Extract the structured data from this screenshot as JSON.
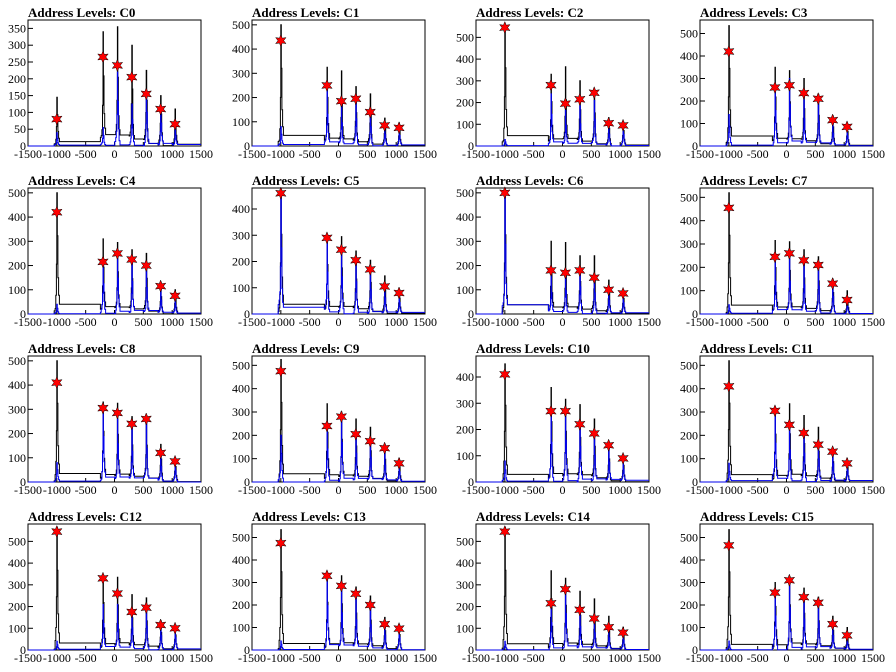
{
  "chart_data": [
    {
      "type": "bar",
      "title": "Address Levels: C0",
      "xlim": [
        -1500,
        1500
      ],
      "ylim": [
        0,
        375
      ],
      "yticks": [
        0,
        50,
        100,
        150,
        200,
        250,
        300,
        350
      ],
      "xticks": [
        -1500,
        -1000,
        -500,
        0,
        500,
        1000,
        1500
      ],
      "tick_label_text": [
        "-1500",
        "-1000",
        "-500",
        "0",
        "500",
        "1000",
        "1500"
      ],
      "peak_x": [
        -1000,
        -200,
        50,
        300,
        550,
        800,
        1050
      ],
      "black_series": [
        145,
        340,
        355,
        300,
        225,
        150,
        110
      ],
      "blue_series": [
        40,
        55,
        220,
        125,
        160,
        110,
        55
      ],
      "star_series": [
        80,
        265,
        240,
        205,
        155,
        110,
        65
      ]
    },
    {
      "type": "bar",
      "title": "Address Levels: C1",
      "xlim": [
        -1500,
        1500
      ],
      "ylim": [
        0,
        520
      ],
      "yticks": [
        0,
        100,
        200,
        300,
        400,
        500
      ],
      "xticks": [
        -1500,
        -1000,
        -500,
        0,
        500,
        1000,
        1500
      ],
      "tick_label_text": [
        "-1500",
        "-1000",
        "-500",
        "0",
        "500",
        "1000",
        "1500"
      ],
      "peak_x": [
        -1000,
        -200,
        50,
        300,
        550,
        800,
        1050
      ],
      "black_series": [
        500,
        325,
        310,
        245,
        215,
        115,
        95
      ],
      "blue_series": [
        80,
        230,
        170,
        190,
        130,
        75,
        70
      ],
      "star_series": [
        435,
        250,
        185,
        195,
        140,
        85,
        75
      ]
    },
    {
      "type": "bar",
      "title": "Address Levels: C2",
      "xlim": [
        -1500,
        1500
      ],
      "ylim": [
        0,
        580
      ],
      "yticks": [
        0,
        100,
        200,
        300,
        400,
        500
      ],
      "xticks": [
        -1500,
        -1000,
        -500,
        0,
        500,
        1000,
        1500
      ],
      "tick_label_text": [
        "-1500",
        "-1000",
        "-500",
        "0",
        "500",
        "1000",
        "1500"
      ],
      "peak_x": [
        -1000,
        -200,
        50,
        300,
        550,
        800,
        1050
      ],
      "black_series": [
        560,
        330,
        365,
        300,
        255,
        130,
        110
      ],
      "blue_series": [
        30,
        240,
        165,
        185,
        210,
        90,
        85
      ],
      "star_series": [
        545,
        280,
        195,
        215,
        245,
        105,
        95
      ]
    },
    {
      "type": "bar",
      "title": "Address Levels: C3",
      "xlim": [
        -1500,
        1500
      ],
      "ylim": [
        0,
        560
      ],
      "yticks": [
        0,
        100,
        200,
        300,
        400,
        500
      ],
      "xticks": [
        -1500,
        -1000,
        -500,
        0,
        500,
        1000,
        1500
      ],
      "tick_label_text": [
        "-1500",
        "-1000",
        "-500",
        "0",
        "500",
        "1000",
        "1500"
      ],
      "peak_x": [
        -1000,
        -200,
        50,
        300,
        550,
        800,
        1050
      ],
      "black_series": [
        535,
        350,
        335,
        300,
        230,
        135,
        100
      ],
      "blue_series": [
        140,
        250,
        300,
        205,
        195,
        100,
        75
      ],
      "star_series": [
        420,
        260,
        270,
        235,
        210,
        115,
        85
      ]
    },
    {
      "type": "bar",
      "title": "Address Levels: C4",
      "xlim": [
        -1500,
        1500
      ],
      "ylim": [
        0,
        520
      ],
      "yticks": [
        0,
        100,
        200,
        300,
        400,
        500
      ],
      "xticks": [
        -1500,
        -1000,
        -500,
        0,
        500,
        1000,
        1500
      ],
      "tick_label_text": [
        "-1500",
        "-1000",
        "-500",
        "0",
        "500",
        "1000",
        "1500"
      ],
      "peak_x": [
        -1000,
        -200,
        50,
        300,
        550,
        800,
        1050
      ],
      "black_series": [
        500,
        310,
        295,
        265,
        250,
        115,
        100
      ],
      "blue_series": [
        40,
        200,
        235,
        215,
        180,
        100,
        65
      ],
      "star_series": [
        420,
        215,
        250,
        225,
        200,
        115,
        75
      ]
    },
    {
      "type": "bar",
      "title": "Address Levels: C5",
      "xlim": [
        -1500,
        1500
      ],
      "ylim": [
        0,
        480
      ],
      "yticks": [
        0,
        100,
        200,
        300,
        400
      ],
      "xticks": [
        -1500,
        -1000,
        -500,
        0,
        500,
        1000,
        1500
      ],
      "tick_label_text": [
        "-1500",
        "-1000",
        "-500",
        "0",
        "500",
        "1000",
        "1500"
      ],
      "peak_x": [
        -1000,
        -200,
        50,
        300,
        550,
        800,
        1050
      ],
      "black_series": [
        470,
        300,
        295,
        240,
        205,
        145,
        95
      ],
      "blue_series": [
        450,
        270,
        230,
        195,
        150,
        100,
        75
      ],
      "star_series": [
        460,
        290,
        245,
        205,
        170,
        105,
        80
      ]
    },
    {
      "type": "bar",
      "title": "Address Levels: C6",
      "xlim": [
        -1500,
        1500
      ],
      "ylim": [
        0,
        520
      ],
      "yticks": [
        0,
        100,
        200,
        300,
        400,
        500
      ],
      "xticks": [
        -1500,
        -1000,
        -500,
        0,
        500,
        1000,
        1500
      ],
      "tick_label_text": [
        "-1500",
        "-1000",
        "-500",
        "0",
        "500",
        "1000",
        "1500"
      ],
      "peak_x": [
        -1000,
        -200,
        50,
        300,
        550,
        800,
        1050
      ],
      "black_series": [
        505,
        300,
        295,
        240,
        240,
        140,
        100
      ],
      "blue_series": [
        490,
        160,
        165,
        185,
        140,
        90,
        75
      ],
      "star_series": [
        500,
        180,
        170,
        180,
        150,
        100,
        85
      ]
    },
    {
      "type": "bar",
      "title": "Address Levels: C7",
      "xlim": [
        -1500,
        1500
      ],
      "ylim": [
        0,
        540
      ],
      "yticks": [
        0,
        100,
        200,
        300,
        400,
        500
      ],
      "xticks": [
        -1500,
        -1000,
        -500,
        0,
        500,
        1000,
        1500
      ],
      "tick_label_text": [
        "-1500",
        "-1000",
        "-500",
        "0",
        "500",
        "1000",
        "1500"
      ],
      "peak_x": [
        -1000,
        -200,
        50,
        300,
        550,
        800,
        1050
      ],
      "black_series": [
        520,
        315,
        310,
        275,
        245,
        150,
        100
      ],
      "blue_series": [
        40,
        235,
        250,
        220,
        200,
        120,
        50
      ],
      "star_series": [
        455,
        245,
        260,
        230,
        210,
        130,
        60
      ]
    },
    {
      "type": "bar",
      "title": "Address Levels: C8",
      "xlim": [
        -1500,
        1500
      ],
      "ylim": [
        0,
        520
      ],
      "yticks": [
        0,
        100,
        200,
        300,
        400,
        500
      ],
      "xticks": [
        -1500,
        -1000,
        -500,
        0,
        500,
        1000,
        1500
      ],
      "tick_label_text": [
        "-1500",
        "-1000",
        "-500",
        "0",
        "500",
        "1000",
        "1500"
      ],
      "peak_x": [
        -1000,
        -200,
        50,
        300,
        550,
        800,
        1050
      ],
      "black_series": [
        500,
        330,
        325,
        270,
        265,
        155,
        100
      ],
      "blue_series": [
        80,
        300,
        260,
        220,
        250,
        110,
        75
      ],
      "star_series": [
        410,
        305,
        285,
        240,
        260,
        120,
        85
      ]
    },
    {
      "type": "bar",
      "title": "Address Levels: C9",
      "xlim": [
        -1500,
        1500
      ],
      "ylim": [
        0,
        540
      ],
      "yticks": [
        0,
        100,
        200,
        300,
        400,
        500
      ],
      "xticks": [
        -1500,
        -1000,
        -500,
        0,
        500,
        1000,
        1500
      ],
      "tick_label_text": [
        "-1500",
        "-1000",
        "-500",
        "0",
        "500",
        "1000",
        "1500"
      ],
      "peak_x": [
        -1000,
        -200,
        50,
        300,
        550,
        800,
        1050
      ],
      "black_series": [
        525,
        335,
        300,
        270,
        235,
        160,
        100
      ],
      "blue_series": [
        200,
        225,
        270,
        200,
        180,
        130,
        75
      ],
      "star_series": [
        475,
        240,
        280,
        205,
        175,
        145,
        80
      ]
    },
    {
      "type": "bar",
      "title": "Address Levels: C10",
      "xlim": [
        -1500,
        1500
      ],
      "ylim": [
        0,
        480
      ],
      "yticks": [
        0,
        100,
        200,
        300,
        400
      ],
      "xticks": [
        -1500,
        -1000,
        -500,
        0,
        500,
        1000,
        1500
      ],
      "tick_label_text": [
        "-1500",
        "-1000",
        "-500",
        "0",
        "500",
        "1000",
        "1500"
      ],
      "peak_x": [
        -1000,
        -200,
        50,
        300,
        550,
        800,
        1050
      ],
      "black_series": [
        450,
        360,
        315,
        295,
        240,
        145,
        100
      ],
      "blue_series": [
        80,
        250,
        255,
        215,
        165,
        125,
        85
      ],
      "star_series": [
        410,
        270,
        270,
        220,
        185,
        140,
        90
      ]
    },
    {
      "type": "bar",
      "title": "Address Levels: C11",
      "xlim": [
        -1500,
        1500
      ],
      "ylim": [
        0,
        540
      ],
      "yticks": [
        0,
        100,
        200,
        300,
        400,
        500
      ],
      "xticks": [
        -1500,
        -1000,
        -500,
        0,
        500,
        1000,
        1500
      ],
      "tick_label_text": [
        "-1500",
        "-1000",
        "-500",
        "0",
        "500",
        "1000",
        "1500"
      ],
      "peak_x": [
        -1000,
        -200,
        50,
        300,
        550,
        800,
        1050
      ],
      "black_series": [
        520,
        320,
        335,
        285,
        235,
        145,
        100
      ],
      "blue_series": [
        80,
        295,
        230,
        200,
        160,
        125,
        80
      ],
      "star_series": [
        410,
        305,
        245,
        210,
        160,
        130,
        80
      ]
    },
    {
      "type": "bar",
      "title": "Address Levels: C12",
      "xlim": [
        -1500,
        1500
      ],
      "ylim": [
        0,
        580
      ],
      "yticks": [
        0,
        100,
        200,
        300,
        400,
        500
      ],
      "xticks": [
        -1500,
        -1000,
        -500,
        0,
        500,
        1000,
        1500
      ],
      "tick_label_text": [
        "-1500",
        "-1000",
        "-500",
        "0",
        "500",
        "1000",
        "1500"
      ],
      "peak_x": [
        -1000,
        -200,
        50,
        300,
        550,
        800,
        1050
      ],
      "black_series": [
        565,
        340,
        335,
        255,
        240,
        135,
        110
      ],
      "blue_series": [
        40,
        210,
        210,
        175,
        180,
        105,
        90
      ],
      "star_series": [
        545,
        330,
        260,
        175,
        195,
        115,
        100
      ]
    },
    {
      "type": "bar",
      "title": "Address Levels: C13",
      "xlim": [
        -1500,
        1500
      ],
      "ylim": [
        0,
        560
      ],
      "yticks": [
        0,
        100,
        200,
        300,
        400,
        500
      ],
      "xticks": [
        -1500,
        -1000,
        -500,
        0,
        500,
        1000,
        1500
      ],
      "tick_label_text": [
        "-1500",
        "-1000",
        "-500",
        "0",
        "500",
        "1000",
        "1500"
      ],
      "peak_x": [
        -1000,
        -200,
        50,
        300,
        550,
        800,
        1050
      ],
      "black_series": [
        535,
        330,
        330,
        280,
        240,
        145,
        110
      ],
      "blue_series": [
        40,
        320,
        280,
        240,
        195,
        110,
        90
      ],
      "star_series": [
        475,
        330,
        285,
        250,
        200,
        115,
        95
      ]
    },
    {
      "type": "bar",
      "title": "Address Levels: C14",
      "xlim": [
        -1500,
        1500
      ],
      "ylim": [
        0,
        580
      ],
      "yticks": [
        0,
        100,
        200,
        300,
        400,
        500
      ],
      "xticks": [
        -1500,
        -1000,
        -500,
        0,
        500,
        1000,
        1500
      ],
      "tick_label_text": [
        "-1500",
        "-1000",
        "-500",
        "0",
        "500",
        "1000",
        "1500"
      ],
      "peak_x": [
        -1000,
        -200,
        50,
        300,
        550,
        800,
        1050
      ],
      "black_series": [
        565,
        365,
        330,
        270,
        235,
        155,
        105
      ],
      "blue_series": [
        40,
        200,
        270,
        180,
        140,
        100,
        75
      ],
      "star_series": [
        545,
        215,
        280,
        185,
        145,
        105,
        80
      ]
    },
    {
      "type": "bar",
      "title": "Address Levels: C15",
      "xlim": [
        -1500,
        1500
      ],
      "ylim": [
        0,
        560
      ],
      "yticks": [
        0,
        100,
        200,
        300,
        400,
        500
      ],
      "xticks": [
        -1500,
        -1000,
        -500,
        0,
        500,
        1000,
        1500
      ],
      "tick_label_text": [
        "-1500",
        "-1000",
        "-500",
        "0",
        "500",
        "1000",
        "1500"
      ],
      "peak_x": [
        -1000,
        -200,
        50,
        300,
        550,
        800,
        1050
      ],
      "black_series": [
        535,
        300,
        320,
        275,
        235,
        150,
        100
      ],
      "blue_series": [
        40,
        245,
        300,
        220,
        195,
        110,
        55
      ],
      "star_series": [
        465,
        255,
        310,
        235,
        210,
        115,
        65
      ]
    }
  ],
  "colors": {
    "black_series": "#000000",
    "blue_series": "#0000ee",
    "star_series": "#ff0000",
    "star_outline": "#000000"
  }
}
